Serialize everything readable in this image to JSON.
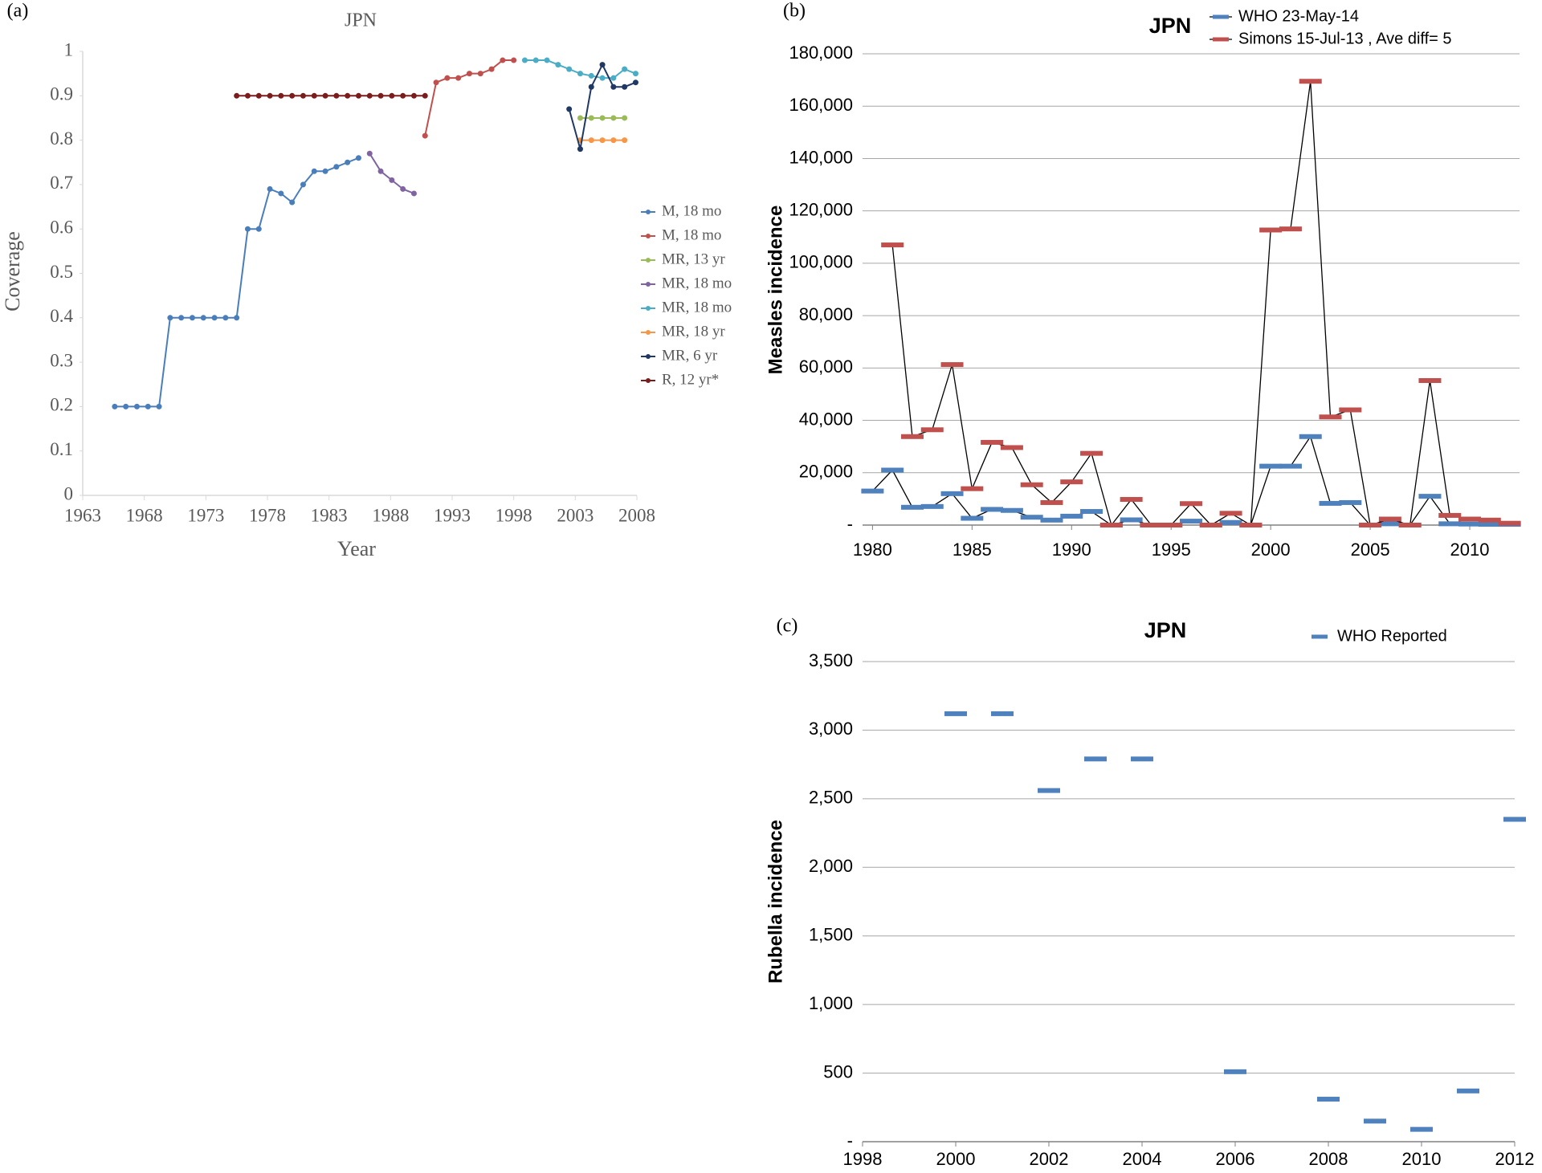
{
  "chart_data": [
    {
      "type": "line",
      "panel_label": "(a)",
      "title": "JPN",
      "xlabel": "Year",
      "ylabel": "Coverage",
      "marker": "circle",
      "xlim": [
        1963,
        2008
      ],
      "xticks": [
        1963,
        1968,
        1973,
        1978,
        1983,
        1988,
        1993,
        1998,
        2003,
        2008
      ],
      "ylim": [
        0,
        1
      ],
      "yticks": [
        0,
        0.1,
        0.2,
        0.3,
        0.4,
        0.5,
        0.6,
        0.7,
        0.8,
        0.9,
        1
      ],
      "grid": false,
      "legend": "right",
      "series": [
        {
          "name": "M, 18 mo",
          "color": "#4a7ebb",
          "x": [
            1965.6,
            1966.5,
            1967.4,
            1968.3,
            1969.2,
            1970.1,
            1971.0,
            1971.9,
            1972.8,
            1973.7,
            1974.6,
            1975.5,
            1976.4,
            1977.3,
            1978.2,
            1979.1,
            1980.0,
            1980.9,
            1981.8,
            1982.7,
            1983.6,
            1984.5,
            1985.4
          ],
          "values": [
            0.2,
            0.2,
            0.2,
            0.2,
            0.2,
            0.4,
            0.4,
            0.4,
            0.4,
            0.4,
            0.4,
            0.4,
            0.6,
            0.6,
            0.69,
            0.68,
            0.66,
            0.7,
            0.73,
            0.73,
            0.74,
            0.75,
            0.76
          ]
        },
        {
          "name": "M, 18 mo",
          "color": "#c0504d",
          "x": [
            1990.8,
            1991.7,
            1992.6,
            1993.5,
            1994.4,
            1995.3,
            1996.2,
            1997.1,
            1998.0
          ],
          "values": [
            0.81,
            0.93,
            0.94,
            0.94,
            0.95,
            0.95,
            0.96,
            0.98,
            0.98
          ]
        },
        {
          "name": "MR, 13 yr",
          "color": "#9bbb59",
          "x": [
            2003.4,
            2004.3,
            2005.2,
            2006.1,
            2007.0
          ],
          "values": [
            0.85,
            0.85,
            0.85,
            0.85,
            0.85
          ]
        },
        {
          "name": "MR, 18 mo",
          "color": "#8064a2",
          "x": [
            1986.3,
            1987.2,
            1988.1,
            1989.0,
            1989.9
          ],
          "values": [
            0.77,
            0.73,
            0.71,
            0.69,
            0.68
          ]
        },
        {
          "name": "MR, 18 mo",
          "color": "#4bacc6",
          "x": [
            1998.9,
            1999.8,
            2000.7,
            2001.6,
            2002.5,
            2003.4,
            2004.3,
            2005.2,
            2006.1,
            2007.0,
            2007.9
          ],
          "values": [
            0.98,
            0.98,
            0.98,
            0.97,
            0.96,
            0.95,
            0.945,
            0.94,
            0.94,
            0.96,
            0.95
          ]
        },
        {
          "name": "MR, 18 yr",
          "color": "#f79646",
          "x": [
            2003.4,
            2004.3,
            2005.2,
            2006.1,
            2007.0
          ],
          "values": [
            0.8,
            0.8,
            0.8,
            0.8,
            0.8
          ]
        },
        {
          "name": "MR, 6 yr",
          "color": "#1f3864",
          "x": [
            2002.5,
            2003.4,
            2004.3,
            2005.2,
            2006.1,
            2007.0,
            2007.9
          ],
          "values": [
            0.87,
            0.78,
            0.92,
            0.97,
            0.92,
            0.92,
            0.93
          ]
        },
        {
          "name": "R, 12 yr*",
          "color": "#7b1c1c",
          "x": [
            1975.5,
            1976.4,
            1977.3,
            1978.2,
            1979.1,
            1980.0,
            1980.9,
            1981.8,
            1982.7,
            1983.6,
            1984.5,
            1985.4,
            1986.3,
            1987.2,
            1988.1,
            1989.0,
            1989.9,
            1990.8
          ],
          "values": [
            0.9,
            0.9,
            0.9,
            0.9,
            0.9,
            0.9,
            0.9,
            0.9,
            0.9,
            0.9,
            0.9,
            0.9,
            0.9,
            0.9,
            0.9,
            0.9,
            0.9,
            0.9
          ]
        }
      ]
    },
    {
      "type": "line",
      "panel_label": "(b)",
      "title": "JPN",
      "ylabel": "Measles incidence",
      "marker": "dash",
      "line_color": "#000000",
      "x": [
        1980,
        1981,
        1982,
        1983,
        1984,
        1985,
        1986,
        1987,
        1988,
        1989,
        1990,
        1991,
        1992,
        1993,
        1994,
        1995,
        1996,
        1997,
        1998,
        1999,
        2000,
        2001,
        2002,
        2003,
        2004,
        2005,
        2006,
        2007,
        2008,
        2009,
        2010,
        2011,
        2012
      ],
      "xlim": [
        1979.5,
        2012.5
      ],
      "xticks": [
        1980,
        1985,
        1990,
        1995,
        2000,
        2005,
        2010
      ],
      "ylim": [
        0,
        180000
      ],
      "yticks": [
        {
          "value": 0,
          "label": "-"
        },
        {
          "value": 20000,
          "label": "20,000"
        },
        {
          "value": 40000,
          "label": "40,000"
        },
        {
          "value": 60000,
          "label": "60,000"
        },
        {
          "value": 80000,
          "label": "80,000"
        },
        {
          "value": 100000,
          "label": "100,000"
        },
        {
          "value": 120000,
          "label": "120,000"
        },
        {
          "value": 140000,
          "label": "140,000"
        },
        {
          "value": 160000,
          "label": "160,000"
        },
        {
          "value": 180000,
          "label": "180,000"
        }
      ],
      "grid": true,
      "legend": "top",
      "series": [
        {
          "name": "WHO 23-May-14",
          "color": "#4f81bd",
          "values": [
            13000,
            21000,
            6800,
            7100,
            12000,
            2600,
            6000,
            5600,
            3000,
            1900,
            3400,
            5200,
            0,
            2000,
            0,
            0,
            1500,
            0,
            1000,
            0,
            22500,
            22500,
            33800,
            8300,
            8600,
            0,
            500,
            0,
            11000,
            500,
            400,
            300,
            300
          ]
        },
        {
          "name": "Simons 15-Jul-13 , Ave diff= 5",
          "color": "#c0504d",
          "values": [
            null,
            107000,
            33800,
            36400,
            61300,
            13900,
            31600,
            29600,
            15400,
            8600,
            16500,
            27400,
            0,
            9800,
            0,
            0,
            8200,
            0,
            4500,
            0,
            112700,
            113100,
            169500,
            41300,
            44000,
            0,
            2300,
            0,
            55200,
            3700,
            2300,
            1900,
            700
          ]
        }
      ]
    },
    {
      "type": "scatter",
      "panel_label": "(c)",
      "title": "JPN",
      "ylabel": "Rubella incidence",
      "marker": "dash",
      "x": [
        2000,
        2001,
        2002,
        2003,
        2004,
        2006,
        2008,
        2009,
        2010,
        2011,
        2012
      ],
      "xlim": [
        1998,
        2012
      ],
      "xticks": [
        1998,
        2000,
        2002,
        2004,
        2006,
        2008,
        2010,
        2012
      ],
      "ylim": [
        0,
        3500
      ],
      "yticks": [
        {
          "value": 0,
          "label": "-"
        },
        500,
        {
          "value": 1000,
          "label": "1,000"
        },
        {
          "value": 1500,
          "label": "1,500"
        },
        {
          "value": 2000,
          "label": "2,000"
        },
        {
          "value": 2500,
          "label": "2,500"
        },
        {
          "value": 3000,
          "label": "3,000"
        },
        {
          "value": 3500,
          "label": "3,500"
        }
      ],
      "grid": true,
      "legend": "top",
      "series": [
        {
          "name": "WHO Reported",
          "color": "#4f81bd",
          "values": [
            3120,
            3120,
            2560,
            2790,
            2790,
            510,
            310,
            150,
            90,
            370,
            2350
          ]
        }
      ]
    }
  ]
}
